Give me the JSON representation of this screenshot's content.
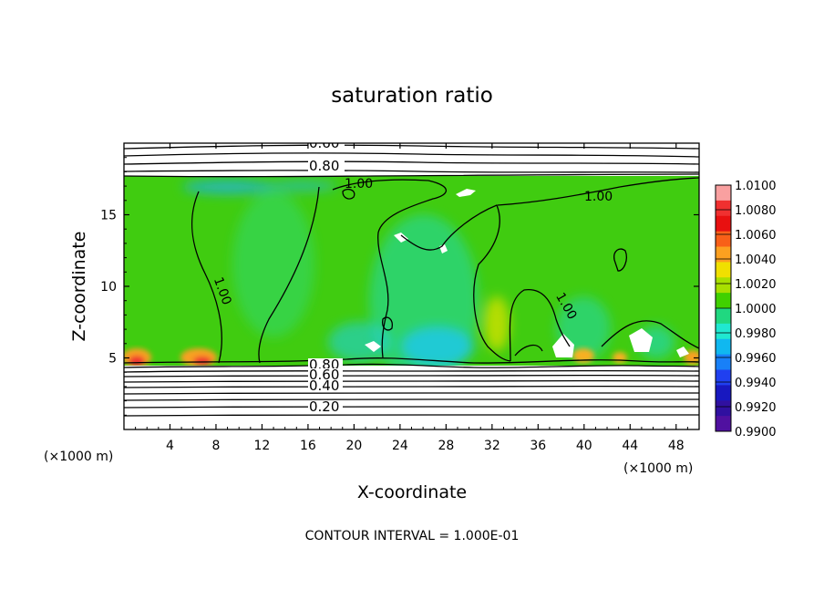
{
  "chart_data": {
    "type": "heatmap",
    "title": "saturation ratio",
    "xlabel": "X-coordinate",
    "ylabel": "Z-coordinate",
    "x_unit": "(×1000 m)",
    "x_unit_right": "(×1000 m)",
    "footer": "CONTOUR INTERVAL = 1.000E-01",
    "xlim": [
      0,
      50
    ],
    "ylim": [
      0,
      20
    ],
    "x_ticks": [
      4,
      8,
      12,
      16,
      20,
      24,
      28,
      32,
      36,
      40,
      44,
      48
    ],
    "y_ticks": [
      5,
      10,
      15
    ],
    "colorbar": {
      "ticks": [
        "1.0100",
        "1.0080",
        "1.0060",
        "1.0040",
        "1.0020",
        "1.0000",
        "0.9980",
        "0.9960",
        "0.9940",
        "0.9920",
        "0.9900"
      ],
      "colors": [
        "#f9a0a0",
        "#f03030",
        "#e81010",
        "#f86018",
        "#fca020",
        "#f0e000",
        "#a8e000",
        "#40d000",
        "#20d880",
        "#20e8d0",
        "#10b8f0",
        "#1880f8",
        "#2040f0",
        "#1818c0",
        "#3010a0",
        "#5010a0"
      ]
    },
    "contour_labels": [
      "0.60",
      "0.80",
      "1.00",
      "1.00",
      "1.00",
      "1.00",
      "0.80",
      "0.60",
      "0.40",
      "0.20"
    ],
    "field": {
      "dominant_value": 1.0,
      "moist_layer_z": [
        4.7,
        17.5
      ],
      "humid_core_x": [
        20,
        30
      ],
      "surface_maxima_x": [
        1,
        6.5,
        40,
        46,
        48
      ]
    }
  }
}
